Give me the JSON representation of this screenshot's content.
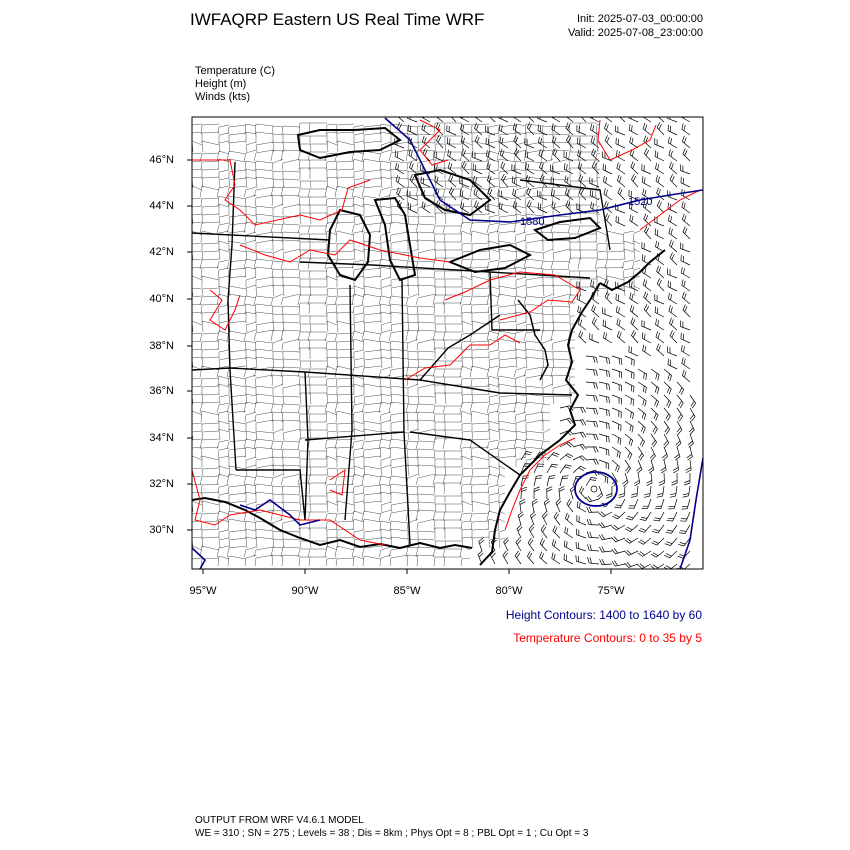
{
  "header": {
    "title": "IWFAQRP Eastern US Real Time WRF",
    "init": "Init: 2025-07-03_00:00:00",
    "valid": "Valid: 2025-07-08_23:00:00"
  },
  "fields": [
    {
      "label": "Temperature   (C)"
    },
    {
      "label": "Height   (m)"
    },
    {
      "label": "Winds   (kts)"
    }
  ],
  "map": {
    "lat_labels": [
      "46°N",
      "44°N",
      "42°N",
      "40°N",
      "38°N",
      "36°N",
      "34°N",
      "32°N",
      "30°N"
    ],
    "lon_labels": [
      "95°W",
      "90°W",
      "85°W",
      "80°W",
      "75°W"
    ],
    "height_contour_labels": [
      "1580",
      "1520"
    ],
    "colors": {
      "height": "#00008b",
      "temperature": "#ff0000",
      "boundary": "#000000"
    }
  },
  "legend": {
    "height": "Height Contours: 1400 to 1640 by 60",
    "temperature": "Temperature Contours: 0 to 35 by 5"
  },
  "footer": {
    "line1": "OUTPUT FROM WRF V4.6.1 MODEL",
    "line2": "WE = 310 ; SN = 275 ; Levels = 38 ; Dis = 8km ; Phys Opt = 8 ; PBL Opt = 1 ; Cu Opt = 3"
  }
}
